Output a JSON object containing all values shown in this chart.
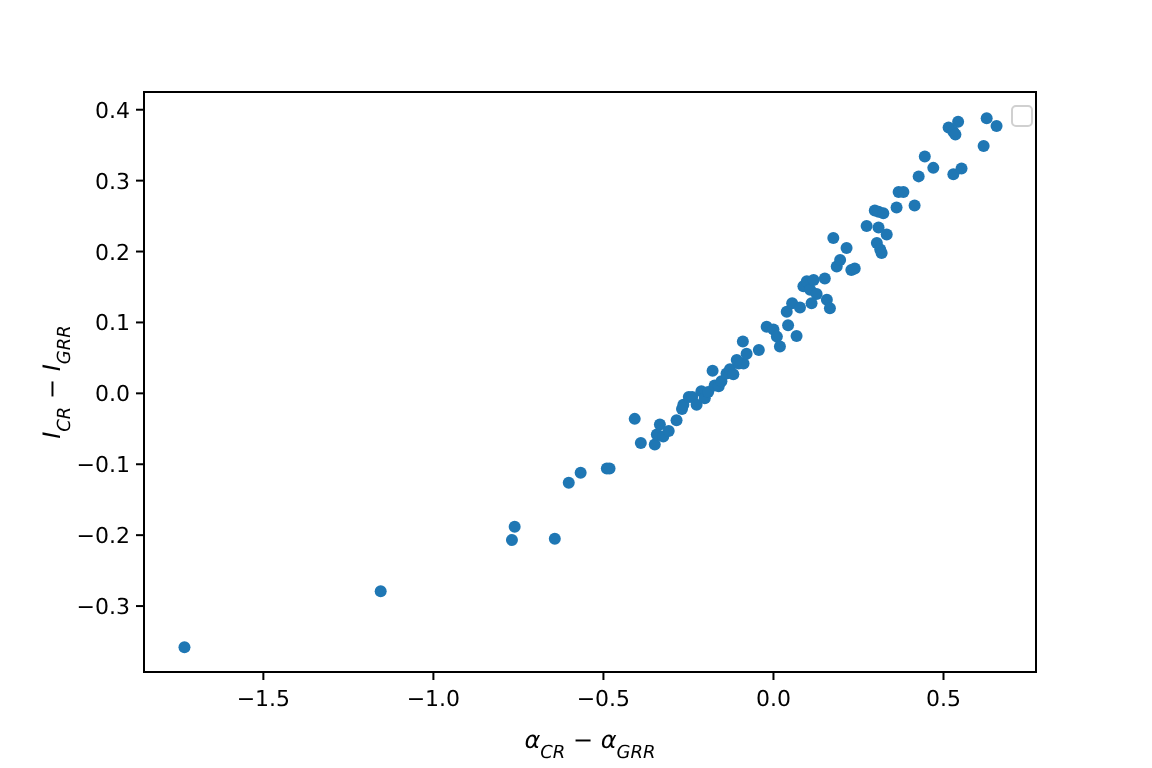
{
  "chart_data": {
    "type": "scatter",
    "xlabel": "α$_{CR}$ − α$_{GRR}$",
    "ylabel": "I$_{CR}$ − I$_{GRR}$",
    "marker": "circle",
    "grid": false,
    "xlim": [
      -1.851,
      0.772
    ],
    "ylim": [
      -0.393,
      0.425
    ],
    "xticks": [
      {
        "value": -1.5,
        "label": "−1.5"
      },
      {
        "value": -1.0,
        "label": "−1.0"
      },
      {
        "value": -0.5,
        "label": "−0.5"
      },
      {
        "value": 0.0,
        "label": "0.0"
      },
      {
        "value": 0.5,
        "label": "0.5"
      }
    ],
    "yticks": [
      {
        "value": -0.3,
        "label": "−0.3"
      },
      {
        "value": -0.2,
        "label": "−0.2"
      },
      {
        "value": -0.1,
        "label": "−0.1"
      },
      {
        "value": 0.0,
        "label": "0.0"
      },
      {
        "value": 0.1,
        "label": "0.1"
      },
      {
        "value": 0.2,
        "label": "0.2"
      },
      {
        "value": 0.3,
        "label": "0.3"
      },
      {
        "value": 0.4,
        "label": "0.4"
      }
    ],
    "series": [
      {
        "color": "#1f77b4",
        "x": [
          -1.732,
          -1.155,
          -0.761,
          -0.769,
          -0.643,
          -0.602,
          -0.567,
          -0.49,
          -0.482,
          -0.408,
          -0.39,
          -0.349,
          -0.334,
          -0.343,
          -0.324,
          -0.308,
          -0.285,
          -0.269,
          -0.265,
          -0.249,
          -0.239,
          -0.226,
          -0.212,
          -0.202,
          -0.192,
          -0.179,
          -0.173,
          -0.161,
          -0.153,
          -0.138,
          -0.128,
          -0.118,
          -0.102,
          -0.088,
          -0.108,
          -0.079,
          -0.09,
          -0.043,
          -0.02,
          0.0,
          0.01,
          0.019,
          0.043,
          0.068,
          0.039,
          0.055,
          0.078,
          0.088,
          0.098,
          0.108,
          0.118,
          0.127,
          0.112,
          0.151,
          0.157,
          0.166,
          0.176,
          0.186,
          0.196,
          0.215,
          0.229,
          0.239,
          0.274,
          0.298,
          0.309,
          0.323,
          0.309,
          0.333,
          0.304,
          0.314,
          0.318,
          0.362,
          0.368,
          0.382,
          0.415,
          0.427,
          0.445,
          0.47,
          0.515,
          0.529,
          0.535,
          0.543,
          0.529,
          0.553,
          0.618,
          0.627,
          0.656
        ],
        "values": [
          -0.358,
          -0.279,
          -0.188,
          -0.207,
          -0.205,
          -0.126,
          -0.112,
          -0.106,
          -0.106,
          -0.036,
          -0.07,
          -0.072,
          -0.044,
          -0.058,
          -0.061,
          -0.053,
          -0.038,
          -0.022,
          -0.016,
          -0.005,
          -0.005,
          -0.016,
          0.003,
          -0.007,
          0.002,
          0.032,
          0.011,
          0.01,
          0.017,
          0.028,
          0.034,
          0.027,
          0.042,
          0.042,
          0.047,
          0.056,
          0.073,
          0.061,
          0.094,
          0.09,
          0.08,
          0.066,
          0.096,
          0.081,
          0.115,
          0.127,
          0.121,
          0.151,
          0.158,
          0.146,
          0.16,
          0.14,
          0.127,
          0.162,
          0.132,
          0.12,
          0.219,
          0.179,
          0.188,
          0.205,
          0.174,
          0.176,
          0.236,
          0.258,
          0.256,
          0.254,
          0.234,
          0.224,
          0.212,
          0.203,
          0.198,
          0.262,
          0.284,
          0.284,
          0.265,
          0.306,
          0.334,
          0.318,
          0.375,
          0.369,
          0.365,
          0.383,
          0.309,
          0.317,
          0.349,
          0.388,
          0.377
        ]
      }
    ]
  }
}
